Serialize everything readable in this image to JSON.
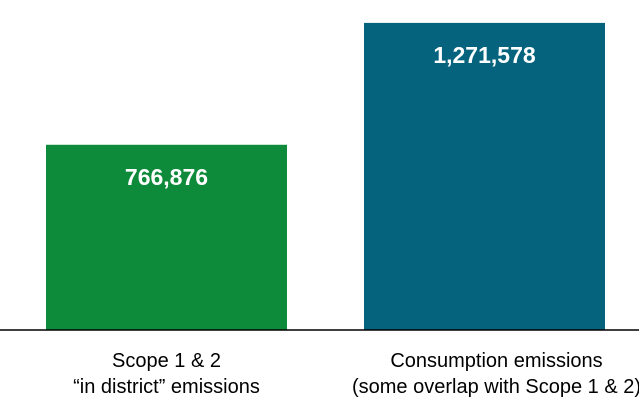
{
  "chart_data": {
    "type": "bar",
    "categories": [
      [
        "Scope 1 & 2",
        "“in district” emissions"
      ],
      [
        "Consumption emissions",
        "(some overlap with Scope 1 & 2)"
      ]
    ],
    "values": [
      766876,
      1271578
    ],
    "value_labels": [
      "766,876",
      "1,271,578"
    ],
    "bar_colors": [
      "#0e8a3b",
      "#05637e"
    ],
    "axis_color": "#000000",
    "ylim": [
      0,
      1325000
    ],
    "grid": false,
    "legend": "none"
  }
}
